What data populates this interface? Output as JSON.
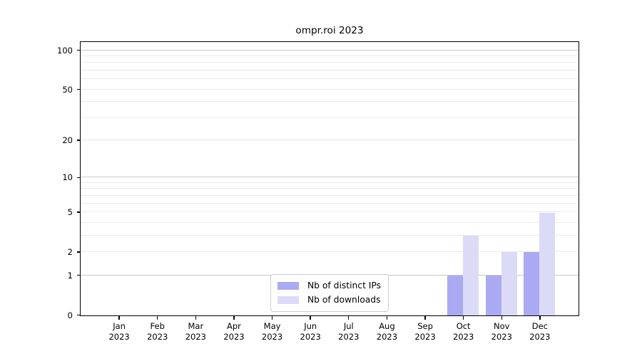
{
  "chart_data": {
    "type": "bar",
    "title": "ompr.roi 2023",
    "categories": [
      "Jan",
      "Feb",
      "Mar",
      "Apr",
      "May",
      "Jun",
      "Jul",
      "Aug",
      "Sep",
      "Oct",
      "Nov",
      "Dec"
    ],
    "year_label": "2023",
    "series": [
      {
        "name": "Nb of distinct IPs",
        "color": "#aaaaf2",
        "values": [
          0,
          0,
          0,
          0,
          0,
          0,
          0,
          0,
          0,
          1,
          1,
          2
        ]
      },
      {
        "name": "Nb of downloads",
        "color": "#dbdbf8",
        "values": [
          0,
          0,
          0,
          0,
          0,
          0,
          0,
          0,
          0,
          3,
          2,
          5
        ]
      }
    ],
    "y_scale": "log1p",
    "ylim": [
      0,
      115
    ],
    "y_ticks": [
      0,
      1,
      2,
      5,
      10,
      20,
      50,
      100
    ],
    "major_gridlines": [
      1,
      10,
      100
    ],
    "minor_gridlines": [
      2,
      3,
      4,
      5,
      6,
      7,
      8,
      9,
      20,
      30,
      40,
      50,
      60,
      70,
      80,
      90
    ],
    "grid": true,
    "legend_position": "lower center",
    "colors": {
      "axis": "#000000",
      "text": "#000000",
      "major_grid": "#c9c9c9",
      "minor_grid": "#e9e9e9"
    }
  }
}
